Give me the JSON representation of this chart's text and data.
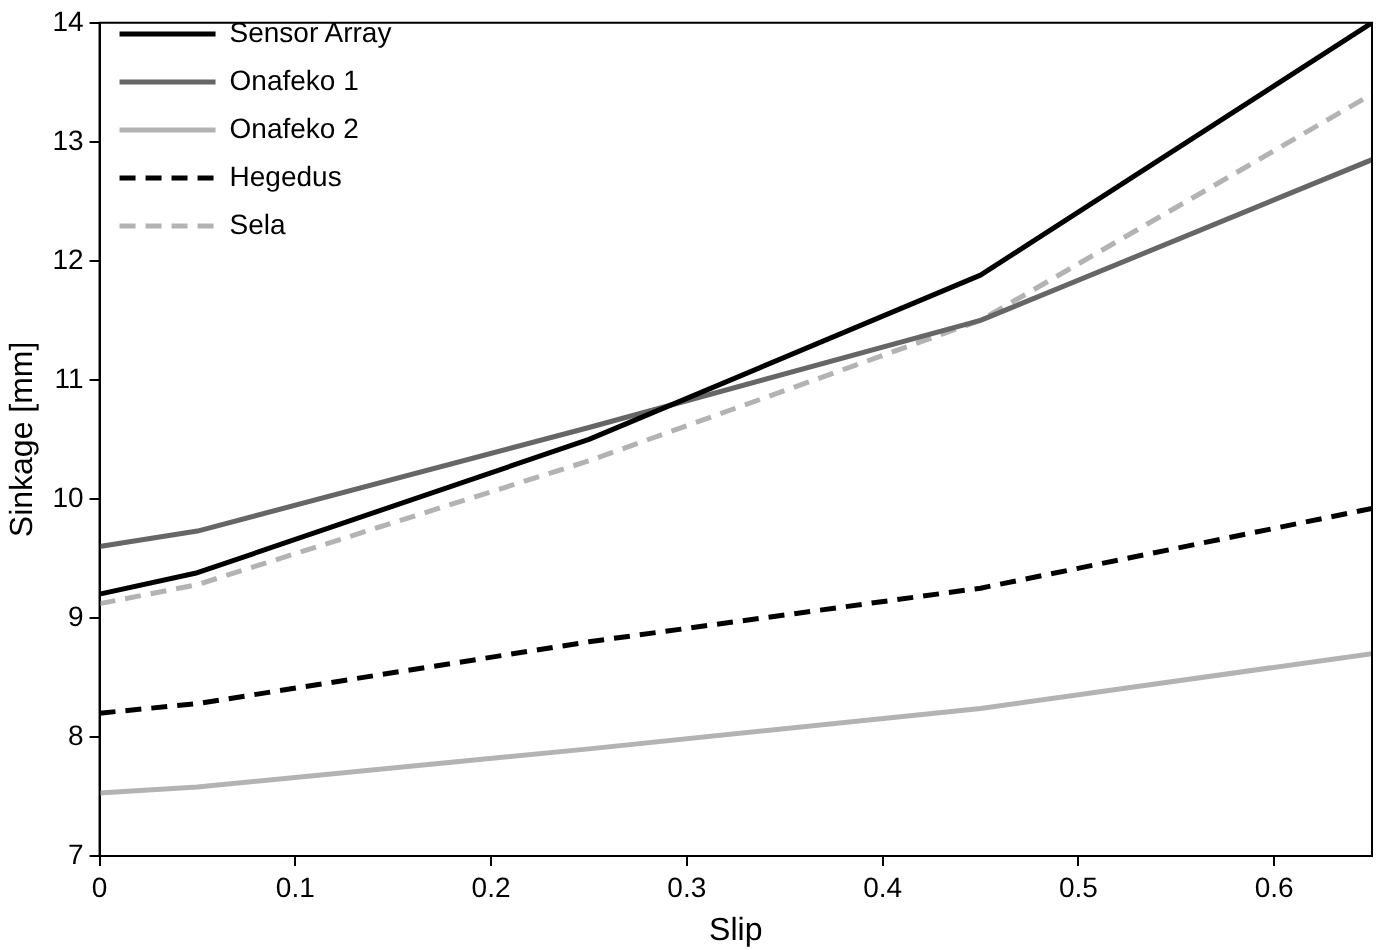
{
  "chart_data": {
    "type": "line",
    "xlabel": "Slip",
    "ylabel": "Sinkage [mm]",
    "x": [
      0,
      0.05,
      0.25,
      0.45,
      0.65
    ],
    "series": [
      {
        "name": "Sensor Array",
        "color": "#000000",
        "line_style": "solid",
        "values": [
          9.2,
          9.38,
          10.5,
          11.88,
          14.0
        ]
      },
      {
        "name": "Onafeko 1",
        "color": "#666666",
        "line_style": "solid",
        "values": [
          9.6,
          9.73,
          10.6,
          11.5,
          12.85
        ]
      },
      {
        "name": "Onafeko 2",
        "color": "#b3b3b3",
        "line_style": "solid",
        "values": [
          7.53,
          7.58,
          7.9,
          8.24,
          8.7
        ]
      },
      {
        "name": "Hegedus",
        "color": "#000000",
        "line_style": "dashed",
        "values": [
          8.2,
          8.28,
          8.8,
          9.25,
          9.92
        ]
      },
      {
        "name": "Sela",
        "color": "#b3b3b3",
        "line_style": "dashed",
        "values": [
          9.12,
          9.28,
          10.32,
          11.5,
          13.4
        ]
      }
    ],
    "xlim": [
      0,
      0.65
    ],
    "xticks": [
      0,
      0.1,
      0.2,
      0.3,
      0.4,
      0.5,
      0.6
    ],
    "ylim": [
      7,
      14
    ],
    "yticks": [
      7,
      8,
      9,
      10,
      11,
      12,
      13,
      14
    ],
    "grid": false,
    "legend": "top left",
    "marker": "none"
  }
}
